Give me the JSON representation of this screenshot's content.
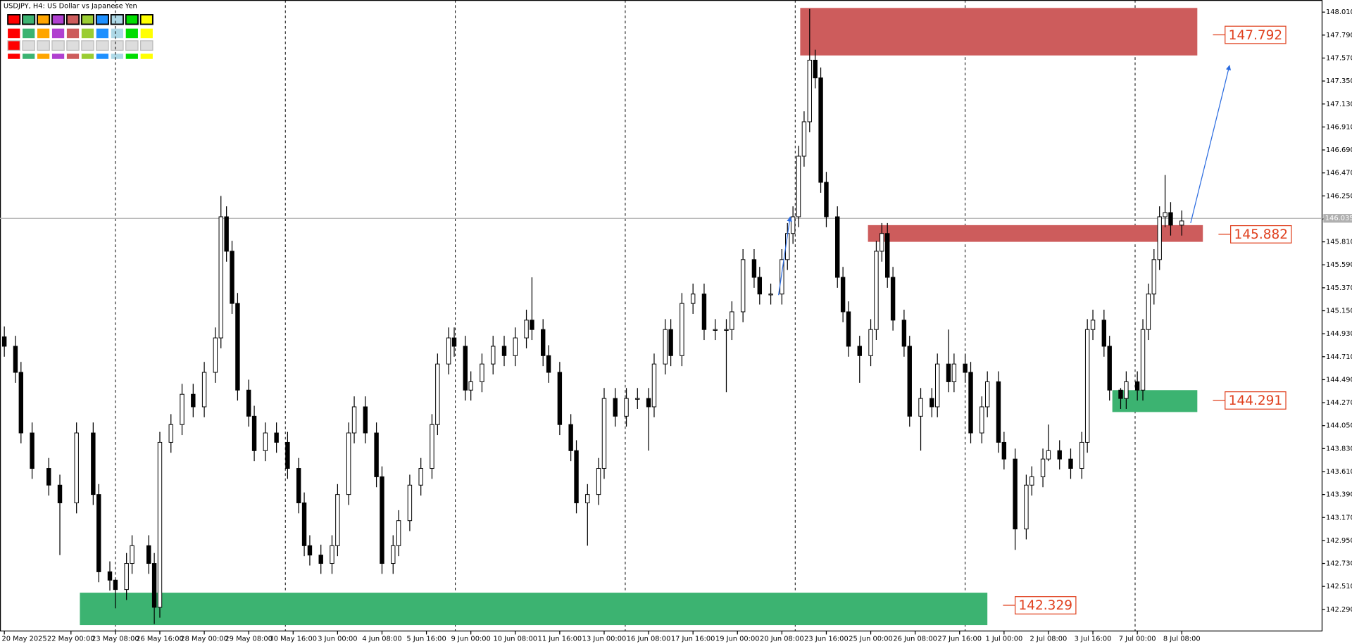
{
  "chart_data": {
    "type": "candlestick",
    "title": "USDJPY, H4:  US Dollar vs Japanese Yen",
    "x": [
      0,
      2,
      3,
      5,
      8,
      10,
      13,
      16,
      17,
      19,
      20,
      22,
      23,
      26,
      27,
      28,
      30,
      32,
      34,
      36,
      38,
      39,
      40,
      41,
      42,
      44,
      45,
      47,
      49,
      51,
      53,
      54,
      55,
      57,
      59,
      60,
      62,
      63,
      65,
      67,
      68,
      70,
      71,
      73,
      75,
      77,
      78,
      80,
      81,
      83,
      84,
      86,
      88,
      90,
      92,
      94,
      95,
      97,
      98,
      100,
      102,
      103,
      105,
      107,
      108,
      110,
      112,
      114,
      116,
      117,
      119,
      120,
      122,
      124,
      126,
      128,
      130,
      131,
      133,
      135,
      136,
      138,
      140,
      141,
      142,
      143,
      144,
      145,
      146,
      147,
      148,
      150,
      151,
      152,
      154,
      156,
      157,
      158,
      159,
      160,
      162,
      163,
      165,
      167,
      168,
      170,
      171,
      173,
      174,
      176,
      177,
      179,
      180,
      182,
      184,
      185,
      187,
      188,
      190,
      192,
      194,
      195,
      196,
      198,
      199,
      201,
      202,
      204,
      205,
      206,
      207,
      208,
      209,
      210,
      212
    ],
    "open": [
      144.9,
      144.81,
      144.56,
      143.98,
      143.64,
      143.48,
      143.31,
      143.98,
      143.39,
      142.65,
      142.57,
      142.48,
      142.73,
      142.9,
      142.73,
      142.31,
      143.89,
      144.06,
      144.35,
      144.23,
      144.56,
      144.89,
      146.05,
      145.72,
      145.22,
      144.39,
      144.14,
      143.81,
      143.98,
      143.89,
      143.64,
      143.31,
      142.9,
      142.81,
      142.73,
      142.9,
      143.39,
      143.98,
      144.23,
      143.98,
      143.56,
      142.73,
      142.9,
      143.14,
      143.48,
      143.64,
      144.06,
      144.64,
      144.89,
      144.81,
      144.39,
      144.47,
      144.64,
      144.81,
      144.72,
      144.89,
      145.06,
      144.97,
      144.72,
      144.56,
      144.06,
      143.81,
      143.31,
      143.39,
      143.64,
      144.31,
      144.14,
      144.31,
      144.31,
      144.23,
      144.64,
      144.97,
      144.72,
      145.22,
      145.31,
      144.97,
      144.97,
      144.97,
      145.14,
      145.64,
      145.47,
      145.31,
      145.31,
      145.64,
      145.89,
      146.05,
      146.63,
      146.96,
      147.55,
      147.38,
      146.38,
      146.05,
      145.47,
      145.14,
      144.81,
      144.72,
      144.97,
      145.72,
      145.89,
      145.47,
      145.06,
      144.81,
      144.14,
      144.31,
      144.23,
      144.64,
      144.47,
      144.64,
      144.56,
      143.98,
      144.23,
      144.47,
      143.89,
      143.73,
      143.06,
      143.48,
      143.56,
      143.73,
      143.81,
      143.73,
      143.64,
      143.89,
      144.97,
      145.06,
      144.81,
      144.39,
      144.31,
      144.47,
      144.39,
      144.97,
      145.31,
      145.64,
      146.05,
      146.09,
      145.97
    ],
    "high": [
      145.0,
      144.91,
      144.66,
      144.08,
      143.74,
      143.58,
      144.08,
      144.08,
      143.49,
      142.75,
      142.58,
      142.83,
      143.0,
      143.0,
      142.83,
      143.99,
      144.16,
      144.45,
      144.45,
      144.66,
      144.99,
      146.25,
      146.15,
      145.82,
      145.32,
      144.49,
      144.24,
      144.08,
      144.08,
      143.99,
      143.74,
      143.41,
      143.0,
      142.91,
      143.0,
      143.49,
      144.08,
      144.33,
      144.33,
      144.08,
      143.66,
      143.0,
      143.24,
      143.58,
      143.74,
      144.16,
      144.74,
      144.99,
      144.99,
      144.91,
      144.57,
      144.74,
      144.91,
      144.91,
      144.99,
      145.16,
      145.47,
      145.07,
      144.82,
      144.66,
      144.16,
      143.91,
      143.49,
      143.74,
      144.41,
      144.41,
      144.41,
      144.41,
      144.41,
      144.74,
      145.07,
      145.07,
      145.32,
      145.41,
      145.41,
      145.07,
      145.07,
      145.24,
      145.74,
      145.74,
      145.57,
      145.41,
      145.74,
      145.99,
      146.15,
      146.73,
      147.06,
      148.04,
      147.65,
      147.48,
      146.48,
      146.15,
      145.57,
      145.24,
      144.91,
      145.07,
      145.82,
      145.99,
      145.99,
      145.57,
      145.16,
      144.91,
      144.41,
      144.41,
      144.74,
      144.97,
      144.74,
      144.74,
      144.66,
      144.33,
      144.57,
      144.57,
      143.99,
      143.83,
      143.58,
      143.66,
      143.83,
      144.06,
      143.91,
      143.83,
      143.99,
      145.07,
      145.16,
      145.16,
      144.91,
      144.41,
      144.57,
      144.57,
      145.07,
      145.41,
      145.74,
      146.15,
      146.45,
      146.19,
      146.11
    ],
    "low": [
      144.71,
      144.46,
      143.88,
      143.54,
      143.38,
      142.81,
      143.21,
      143.29,
      142.55,
      142.47,
      142.3,
      142.38,
      142.63,
      142.63,
      142.15,
      142.21,
      143.79,
      143.96,
      144.13,
      144.13,
      144.46,
      144.79,
      145.62,
      145.12,
      144.29,
      144.04,
      143.71,
      143.71,
      143.79,
      143.54,
      143.21,
      142.8,
      142.71,
      142.63,
      142.63,
      142.8,
      143.29,
      143.88,
      143.88,
      143.46,
      142.63,
      142.63,
      142.8,
      143.04,
      143.38,
      143.54,
      143.96,
      144.54,
      144.71,
      144.29,
      144.29,
      144.37,
      144.54,
      144.62,
      144.62,
      144.79,
      144.87,
      144.62,
      144.46,
      143.96,
      143.71,
      143.21,
      142.9,
      143.29,
      143.54,
      144.04,
      144.04,
      144.21,
      143.81,
      144.13,
      144.54,
      144.62,
      144.62,
      145.12,
      144.87,
      144.87,
      144.37,
      144.87,
      145.04,
      145.37,
      145.21,
      145.21,
      145.21,
      145.54,
      145.79,
      145.95,
      146.53,
      146.86,
      147.28,
      146.28,
      145.95,
      145.37,
      145.04,
      144.71,
      144.46,
      144.62,
      144.87,
      145.62,
      145.37,
      144.96,
      144.71,
      144.04,
      143.81,
      144.13,
      144.13,
      144.37,
      144.37,
      144.46,
      143.88,
      143.88,
      144.13,
      143.79,
      143.63,
      142.86,
      142.96,
      143.38,
      143.46,
      143.71,
      143.63,
      143.54,
      143.54,
      143.79,
      144.87,
      144.71,
      144.29,
      144.21,
      144.21,
      144.29,
      144.29,
      144.87,
      145.21,
      145.54,
      145.95,
      145.87,
      145.87
    ],
    "close": [
      144.81,
      144.56,
      143.98,
      143.64,
      143.48,
      143.31,
      143.98,
      143.39,
      142.65,
      142.57,
      142.48,
      142.73,
      142.9,
      142.73,
      142.31,
      143.89,
      144.06,
      144.35,
      144.23,
      144.56,
      144.89,
      146.05,
      145.72,
      145.22,
      144.39,
      144.14,
      143.81,
      143.98,
      143.89,
      143.64,
      143.31,
      142.9,
      142.81,
      142.73,
      142.9,
      143.39,
      143.98,
      144.23,
      143.98,
      143.56,
      142.73,
      142.9,
      143.14,
      143.48,
      143.64,
      144.06,
      144.64,
      144.89,
      144.81,
      144.39,
      144.47,
      144.64,
      144.81,
      144.72,
      144.89,
      145.06,
      144.97,
      144.72,
      144.56,
      144.06,
      143.81,
      143.31,
      143.39,
      143.64,
      144.31,
      144.14,
      144.31,
      144.31,
      144.23,
      144.64,
      144.97,
      144.72,
      145.22,
      145.31,
      144.97,
      144.97,
      144.97,
      145.14,
      145.64,
      145.47,
      145.31,
      145.31,
      145.64,
      145.89,
      146.05,
      146.63,
      146.96,
      147.55,
      147.38,
      146.38,
      146.05,
      145.47,
      145.14,
      144.81,
      144.72,
      144.97,
      145.72,
      145.89,
      145.47,
      145.06,
      144.81,
      144.14,
      144.31,
      144.23,
      144.64,
      144.47,
      144.64,
      144.56,
      143.98,
      144.23,
      144.47,
      143.89,
      143.73,
      143.06,
      143.48,
      143.56,
      143.73,
      143.81,
      143.73,
      143.64,
      143.89,
      144.97,
      145.06,
      144.81,
      144.39,
      144.31,
      144.47,
      144.39,
      144.97,
      145.31,
      145.64,
      146.05,
      146.09,
      145.97,
      146.01
    ],
    "xlim": [
      -0.78,
      237.34
    ],
    "ylim": [
      142.083,
      148.126
    ],
    "yticks": [
      {
        "value": 142.29,
        "label": "142.290"
      },
      {
        "value": 142.51,
        "label": "142.510"
      },
      {
        "value": 142.73,
        "label": "142.730"
      },
      {
        "value": 142.95,
        "label": "142.950"
      },
      {
        "value": 143.17,
        "label": "143.170"
      },
      {
        "value": 143.39,
        "label": "143.390"
      },
      {
        "value": 143.61,
        "label": "143.610"
      },
      {
        "value": 143.83,
        "label": "143.830"
      },
      {
        "value": 144.05,
        "label": "144.050"
      },
      {
        "value": 144.27,
        "label": "144.270"
      },
      {
        "value": 144.49,
        "label": "144.490"
      },
      {
        "value": 144.71,
        "label": "144.710"
      },
      {
        "value": 144.93,
        "label": "144.930"
      },
      {
        "value": 145.15,
        "label": "145.150"
      },
      {
        "value": 145.37,
        "label": "145.370"
      },
      {
        "value": 145.59,
        "label": "145.590"
      },
      {
        "value": 145.81,
        "label": "145.810"
      },
      {
        "value": 146.03,
        "label": "146.030"
      },
      {
        "value": 146.25,
        "label": "146.250"
      },
      {
        "value": 146.47,
        "label": "146.470"
      },
      {
        "value": 146.69,
        "label": "146.690"
      },
      {
        "value": 146.91,
        "label": "146.910"
      },
      {
        "value": 147.13,
        "label": "147.130"
      },
      {
        "value": 147.35,
        "label": "147.350"
      },
      {
        "value": 147.57,
        "label": "147.570"
      },
      {
        "value": 147.79,
        "label": "147.790"
      },
      {
        "value": 148.01,
        "label": "148.010"
      }
    ],
    "xticks": [
      {
        "value": 0,
        "label": "20 May 2025"
      },
      {
        "value": 12,
        "label": "22 May 00:00"
      },
      {
        "value": 20,
        "label": "23 May 08:00"
      },
      {
        "value": 28,
        "label": "26 May 16:00"
      },
      {
        "value": 36,
        "label": "28 May 00:00"
      },
      {
        "value": 44,
        "label": "29 May 08:00"
      },
      {
        "value": 52,
        "label": "30 May 16:00"
      },
      {
        "value": 60,
        "label": "3 Jun 00:00"
      },
      {
        "value": 68,
        "label": "4 Jun 08:00"
      },
      {
        "value": 76,
        "label": "5 Jun 16:00"
      },
      {
        "value": 84,
        "label": "9 Jun 00:00"
      },
      {
        "value": 92,
        "label": "10 Jun 08:00"
      },
      {
        "value": 100,
        "label": "11 Jun 16:00"
      },
      {
        "value": 108,
        "label": "13 Jun 00:00"
      },
      {
        "value": 116,
        "label": "16 Jun 08:00"
      },
      {
        "value": 124,
        "label": "17 Jun 16:00"
      },
      {
        "value": 132,
        "label": "19 Jun 00:00"
      },
      {
        "value": 140,
        "label": "20 Jun 08:00"
      },
      {
        "value": 148,
        "label": "23 Jun 16:00"
      },
      {
        "value": 156,
        "label": "25 Jun 00:00"
      },
      {
        "value": 164,
        "label": "26 Jun 08:00"
      },
      {
        "value": 172,
        "label": "27 Jun 16:00"
      },
      {
        "value": 180,
        "label": "1 Jul 00:00"
      },
      {
        "value": 188,
        "label": "2 Jul 08:00"
      },
      {
        "value": 196,
        "label": "3 Jul 16:00"
      },
      {
        "value": 204,
        "label": "7 Jul 00:00"
      },
      {
        "value": 212,
        "label": "8 Jul 08:00"
      }
    ],
    "vgrid": [
      20,
      50.6,
      81.2,
      111.8,
      142.4,
      173,
      203.6
    ],
    "current_price": 146.035,
    "zones": [
      {
        "color": "#cd5c5c",
        "low": 147.595,
        "high": 148.05,
        "x0": 143.3,
        "x1": 214.8,
        "level": 147.792
      },
      {
        "color": "#cd5c5c",
        "low": 145.81,
        "high": 145.97,
        "x0": 155.5,
        "x1": 215.8,
        "level": 145.882
      },
      {
        "color": "#3cb371",
        "low": 144.18,
        "high": 144.39,
        "x0": 199.5,
        "x1": 214.8,
        "level": 144.291
      },
      {
        "color": "#3cb371",
        "low": 142.14,
        "high": 142.45,
        "x0": 13.6,
        "x1": 177,
        "level": 142.329
      }
    ],
    "arrows": [
      {
        "x0": 213.6,
        "y0": 145.99,
        "x1": 220.6,
        "y1": 147.5
      },
      {
        "x0": 139.4,
        "y0": 145.3,
        "x1": 141.5,
        "y1": 146.05
      }
    ]
  }
}
